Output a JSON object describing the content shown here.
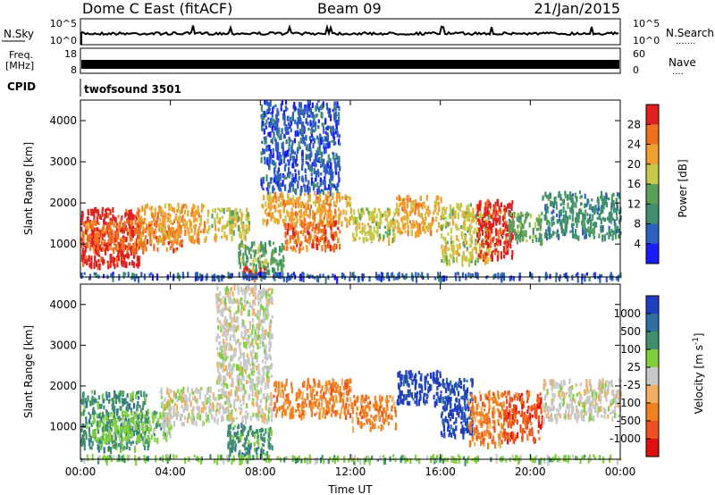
{
  "header": {
    "station": "Dome C East (fitACF)",
    "beam": "Beam 09",
    "date": "21/Jan/2015"
  },
  "panels": {
    "nsky": {
      "label": "N.Sky",
      "tick_hi": "10^5",
      "tick_lo": "10^0",
      "right_label": "N.Search",
      "right_dots": "·······"
    },
    "freq": {
      "label_line1": "Freq.",
      "label_line2": "[MHz]",
      "tick_hi": "18",
      "tick_lo": "8",
      "right_tick_hi": "60",
      "right_tick_lo": "0",
      "right_label": "Nave",
      "right_dots": "····"
    },
    "cpid": {
      "label": "CPID",
      "text": "twofsound 3501"
    }
  },
  "chart_data": [
    {
      "type": "heatmap",
      "name": "power-panel",
      "ylabel": "Slant Range [km]",
      "xlabel": "",
      "ylim": [
        200,
        4500
      ],
      "xlim": [
        0,
        24
      ],
      "x_ticks": [
        "00:00",
        "04:00",
        "08:00",
        "12:00",
        "16:00",
        "20:00",
        "00:00"
      ],
      "y_ticks": [
        1000,
        2000,
        3000,
        4000
      ],
      "colorbar": {
        "label": "Power [dB]",
        "ticks": [
          "4",
          "8",
          "12",
          "16",
          "20",
          "24",
          "28"
        ],
        "colors": [
          "#1a1aff",
          "#2f5fbf",
          "#3f8f6f",
          "#5aa05a",
          "#c8c84a",
          "#f0a030",
          "#f07020",
          "#e02020"
        ]
      },
      "regions": [
        {
          "t0": 0.0,
          "t1": 2.6,
          "r0": 500,
          "r1": 1900,
          "level": 7
        },
        {
          "t0": 0.0,
          "t1": 4.5,
          "r0": 900,
          "r1": 1600,
          "level": 6
        },
        {
          "t0": 2.5,
          "t1": 5.5,
          "r0": 1100,
          "r1": 2000,
          "level": 5
        },
        {
          "t0": 5.5,
          "t1": 7.5,
          "r0": 1200,
          "r1": 1900,
          "level": 4
        },
        {
          "t0": 7.0,
          "t1": 9.0,
          "r0": 300,
          "r1": 1100,
          "level": 3
        },
        {
          "t0": 7.2,
          "t1": 8.2,
          "r0": 200,
          "r1": 500,
          "level": 7
        },
        {
          "t0": 8.0,
          "t1": 12.0,
          "r0": 1500,
          "r1": 2300,
          "level": 5
        },
        {
          "t0": 9.0,
          "t1": 11.5,
          "r0": 900,
          "r1": 1600,
          "level": 6
        },
        {
          "t0": 8.0,
          "t1": 11.5,
          "r0": 2300,
          "r1": 4500,
          "level": 1
        },
        {
          "t0": 12.0,
          "t1": 14.0,
          "r0": 1100,
          "r1": 1900,
          "level": 4
        },
        {
          "t0": 14.0,
          "t1": 16.0,
          "r0": 1300,
          "r1": 2200,
          "level": 5
        },
        {
          "t0": 16.0,
          "t1": 18.2,
          "r0": 600,
          "r1": 2000,
          "level": 4
        },
        {
          "t0": 17.6,
          "t1": 19.2,
          "r0": 700,
          "r1": 2100,
          "level": 7
        },
        {
          "t0": 19.0,
          "t1": 20.5,
          "r0": 1100,
          "r1": 1800,
          "level": 3
        },
        {
          "t0": 20.5,
          "t1": 24.0,
          "r0": 1200,
          "r1": 2300,
          "level": 2
        },
        {
          "t0": 0.0,
          "t1": 24.0,
          "r0": 200,
          "r1": 330,
          "level": 1
        }
      ]
    },
    {
      "type": "heatmap",
      "name": "velocity-panel",
      "ylabel": "Slant Range [km]",
      "xlabel": "Time UT",
      "ylim": [
        200,
        4500
      ],
      "xlim": [
        0,
        24
      ],
      "x_ticks": [
        "00:00",
        "04:00",
        "08:00",
        "12:00",
        "16:00",
        "20:00",
        "00:00"
      ],
      "y_ticks": [
        1000,
        2000,
        3000,
        4000
      ],
      "colorbar": {
        "label": "Velocity [m s^-1]",
        "ticks": [
          "1000",
          "500",
          "100",
          "25",
          "-25",
          "-100",
          "-500",
          "-1000"
        ],
        "colors": [
          "#1f3fbf",
          "#2f6fa0",
          "#3f8f6f",
          "#7fcf3f",
          "#c8c8c8",
          "#f0b060",
          "#f08020",
          "#f05020",
          "#e01010"
        ]
      },
      "regions": [
        {
          "t0": 0.0,
          "t1": 3.0,
          "r0": 500,
          "r1": 1900,
          "level": 2
        },
        {
          "t0": 0.5,
          "t1": 4.0,
          "r0": 700,
          "r1": 1400,
          "level": 3
        },
        {
          "t0": 3.5,
          "t1": 6.0,
          "r0": 1100,
          "r1": 2000,
          "level": 4
        },
        {
          "t0": 6.0,
          "t1": 8.5,
          "r0": 1200,
          "r1": 4500,
          "level": 4
        },
        {
          "t0": 6.5,
          "t1": 8.5,
          "r0": 300,
          "r1": 1100,
          "level": 2
        },
        {
          "t0": 8.5,
          "t1": 12.0,
          "r0": 1300,
          "r1": 2200,
          "level": 6
        },
        {
          "t0": 12.0,
          "t1": 14.0,
          "r0": 1000,
          "r1": 1800,
          "level": 6
        },
        {
          "t0": 14.0,
          "t1": 16.0,
          "r0": 1600,
          "r1": 2400,
          "level": 0
        },
        {
          "t0": 16.0,
          "t1": 17.4,
          "r0": 800,
          "r1": 2200,
          "level": 0
        },
        {
          "t0": 17.2,
          "t1": 18.8,
          "r0": 600,
          "r1": 1900,
          "level": 6
        },
        {
          "t0": 18.8,
          "t1": 20.5,
          "r0": 700,
          "r1": 1900,
          "level": 7
        },
        {
          "t0": 20.5,
          "t1": 24.0,
          "r0": 1200,
          "r1": 2200,
          "level": 4
        },
        {
          "t0": 0.0,
          "t1": 24.0,
          "r0": 200,
          "r1": 330,
          "level": 3
        }
      ]
    }
  ]
}
